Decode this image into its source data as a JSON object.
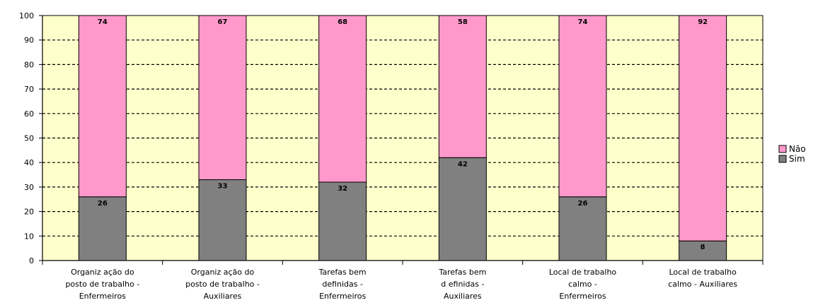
{
  "chart_data": {
    "type": "bar",
    "stacked": true,
    "categories": [
      [
        "Organiz ação do",
        "posto de trabalho -",
        "Enfermeiros"
      ],
      [
        "Organiz ação do",
        "posto de trabalho -",
        "Auxiliares"
      ],
      [
        "Tarefas bem",
        "definidas -",
        "Enfermeiros"
      ],
      [
        "Tarefas bem",
        "d efinidas -",
        "Auxiliares"
      ],
      [
        "Local de trabalho",
        "calmo -",
        "Enfermeiros"
      ],
      [
        "Local de trabalho",
        "calmo - Auxiliares"
      ]
    ],
    "series": [
      {
        "name": "Sim",
        "color": "#808080",
        "values": [
          26,
          33,
          32,
          42,
          26,
          8
        ],
        "labels": [
          "26",
          "33",
          "32",
          "42",
          "26",
          "8"
        ]
      },
      {
        "name": "Não",
        "color": "#ff99cc",
        "values": [
          74,
          67,
          68,
          58,
          74,
          92
        ],
        "labels": [
          "74",
          "67",
          "68",
          "58",
          "74",
          "92"
        ]
      }
    ],
    "ylim": [
      0,
      100
    ],
    "yticks": [
      0,
      10,
      20,
      30,
      40,
      50,
      60,
      70,
      80,
      90,
      100
    ],
    "grid": true,
    "plot_background": "#ffffcc",
    "legend": {
      "position": "right",
      "entries": [
        "Não",
        "Sim"
      ]
    }
  }
}
